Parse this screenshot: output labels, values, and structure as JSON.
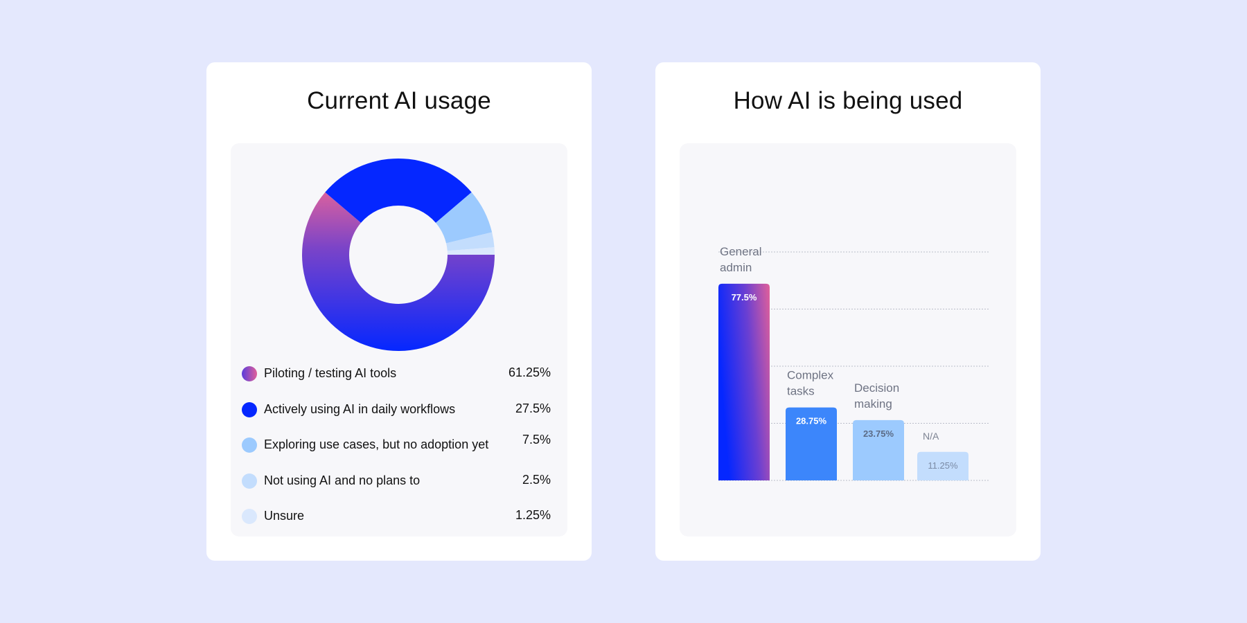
{
  "colors": {
    "background": "#e4e8fd",
    "card": "#ffffff",
    "panel": "#f7f7fa",
    "gradient_pink": "#d9609f",
    "gradient_purple": "#7b44c8",
    "blue_dark": "#0527ff",
    "blue_mid": "#3c86fb",
    "blue_light": "#9ccafe",
    "blue_pale": "#c3ddfd",
    "blue_faint": "#dae8fd"
  },
  "left_card": {
    "title": "Current AI usage"
  },
  "right_card": {
    "title": "How AI is being used"
  },
  "chart_data": [
    {
      "type": "pie",
      "title": "Current AI usage",
      "donut": true,
      "slices": [
        {
          "label": "Piloting / testing AI tools",
          "value": 61.25,
          "value_label": "61.25%",
          "color": "gradient-purple-blue"
        },
        {
          "label": "Actively using AI in daily workflows",
          "value": 27.5,
          "value_label": "27.5%",
          "color": "#0527ff"
        },
        {
          "label": "Exploring use cases, but no adoption yet",
          "value": 7.5,
          "value_label": "7.5%",
          "color": "#9ccafe"
        },
        {
          "label": "Not using AI and no plans to",
          "value": 2.5,
          "value_label": "2.5%",
          "color": "#c3ddfd"
        },
        {
          "label": "Unsure",
          "value": 1.25,
          "value_label": "1.25%",
          "color": "#dae8fd"
        }
      ],
      "legend_position": "bottom"
    },
    {
      "type": "bar",
      "title": "How AI is being used",
      "categories": [
        [
          "General",
          "admin"
        ],
        [
          "Complex",
          "tasks"
        ],
        [
          "Decision",
          "making"
        ],
        [
          "N/A"
        ]
      ],
      "values": [
        77.5,
        28.75,
        23.75,
        11.25
      ],
      "value_labels": [
        "77.5%",
        "28.75%",
        "23.75%",
        "11.25%"
      ],
      "colors": [
        "gradient-blue-pink",
        "#3c86fb",
        "#9ccafe",
        "#c3ddfd"
      ],
      "ylim": [
        0,
        90
      ],
      "grid": true,
      "axis_labels_shown": false
    }
  ]
}
